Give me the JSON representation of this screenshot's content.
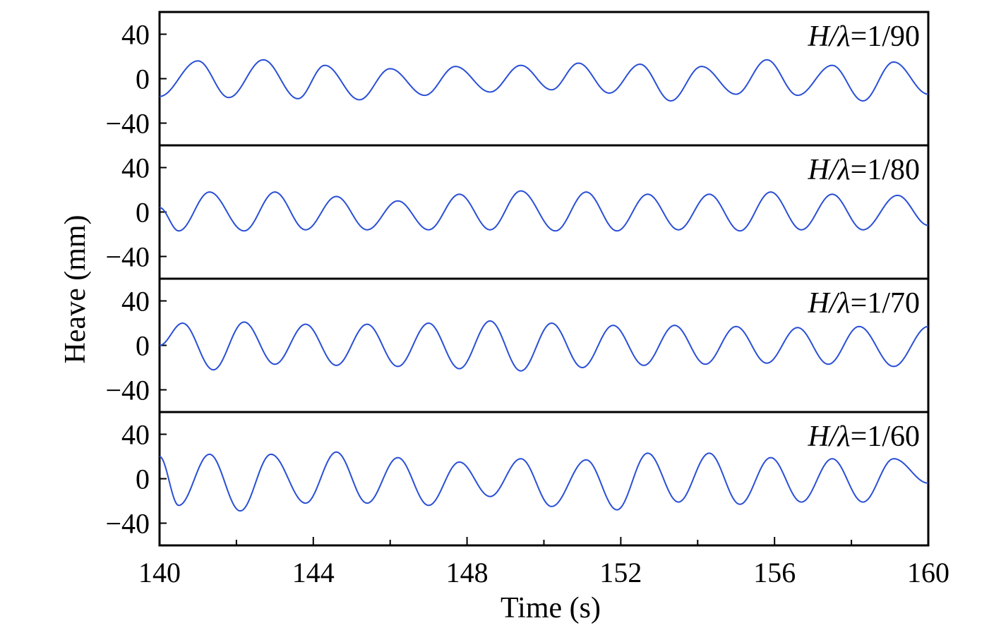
{
  "chart_data": {
    "type": "line",
    "xlabel": "Time (s)",
    "ylabel": "Heave (mm)",
    "xlim": [
      140,
      160
    ],
    "x_ticks": [
      140,
      144,
      148,
      152,
      156,
      160
    ],
    "x_minor_ticks": [
      142,
      146,
      150,
      154,
      158
    ],
    "y_ticks": [
      40,
      0,
      -40
    ],
    "y_tick_labels": [
      "40",
      "0",
      "−40"
    ],
    "ylim": [
      -60,
      60
    ],
    "series_color": "#2a4fd6",
    "panels": [
      {
        "name": "H/λ=1/90",
        "label_italic_part": "H/λ",
        "label_plain_part": "=1/90",
        "peaks": [
          [
            140.0,
            -16
          ],
          [
            141.0,
            16
          ],
          [
            141.8,
            -17
          ],
          [
            142.7,
            17
          ],
          [
            143.6,
            -18
          ],
          [
            144.3,
            12
          ],
          [
            145.2,
            -19
          ],
          [
            146.0,
            9
          ],
          [
            146.9,
            -15
          ],
          [
            147.7,
            11
          ],
          [
            148.6,
            -12
          ],
          [
            149.4,
            12
          ],
          [
            150.2,
            -10
          ],
          [
            150.9,
            14
          ],
          [
            151.7,
            -13
          ],
          [
            152.5,
            13
          ],
          [
            153.3,
            -20
          ],
          [
            154.1,
            11
          ],
          [
            155.0,
            -14
          ],
          [
            155.8,
            17
          ],
          [
            156.6,
            -15
          ],
          [
            157.5,
            12
          ],
          [
            158.3,
            -20
          ],
          [
            159.1,
            15
          ],
          [
            160.0,
            -14
          ]
        ]
      },
      {
        "name": "H/λ=1/80",
        "label_italic_part": "H/λ",
        "label_plain_part": "=1/80",
        "peaks": [
          [
            140.0,
            4
          ],
          [
            140.5,
            -17
          ],
          [
            141.3,
            18
          ],
          [
            142.2,
            -17
          ],
          [
            143.0,
            18
          ],
          [
            143.8,
            -16
          ],
          [
            144.6,
            14
          ],
          [
            145.4,
            -16
          ],
          [
            146.2,
            10
          ],
          [
            147.0,
            -16
          ],
          [
            147.8,
            16
          ],
          [
            148.6,
            -16
          ],
          [
            149.4,
            19
          ],
          [
            150.3,
            -17
          ],
          [
            151.1,
            18
          ],
          [
            151.9,
            -17
          ],
          [
            152.7,
            16
          ],
          [
            153.5,
            -16
          ],
          [
            154.3,
            16
          ],
          [
            155.1,
            -17
          ],
          [
            155.9,
            18
          ],
          [
            156.7,
            -16
          ],
          [
            157.5,
            16
          ],
          [
            158.3,
            -16
          ],
          [
            159.2,
            15
          ],
          [
            160.0,
            -12
          ]
        ]
      },
      {
        "name": "H/λ=1/70",
        "label_italic_part": "H/λ",
        "label_plain_part": "=1/70",
        "peaks": [
          [
            140.0,
            0
          ],
          [
            140.6,
            20
          ],
          [
            141.4,
            -22
          ],
          [
            142.2,
            21
          ],
          [
            143.0,
            -17
          ],
          [
            143.8,
            19
          ],
          [
            144.6,
            -18
          ],
          [
            145.4,
            19
          ],
          [
            146.2,
            -19
          ],
          [
            147.0,
            20
          ],
          [
            147.8,
            -21
          ],
          [
            148.6,
            22
          ],
          [
            149.4,
            -23
          ],
          [
            150.2,
            20
          ],
          [
            151.0,
            -20
          ],
          [
            151.8,
            18
          ],
          [
            152.6,
            -18
          ],
          [
            153.4,
            18
          ],
          [
            154.2,
            -17
          ],
          [
            155.0,
            17
          ],
          [
            155.8,
            -16
          ],
          [
            156.6,
            16
          ],
          [
            157.4,
            -17
          ],
          [
            158.2,
            17
          ],
          [
            159.1,
            -19
          ],
          [
            160.0,
            17
          ]
        ]
      },
      {
        "name": "H/λ=1/60",
        "label_italic_part": "H/λ",
        "label_plain_part": "=1/60",
        "peaks": [
          [
            140.0,
            20
          ],
          [
            140.5,
            -24
          ],
          [
            141.3,
            22
          ],
          [
            142.1,
            -29
          ],
          [
            142.9,
            22
          ],
          [
            143.8,
            -22
          ],
          [
            144.6,
            24
          ],
          [
            145.4,
            -22
          ],
          [
            146.2,
            19
          ],
          [
            147.0,
            -24
          ],
          [
            147.8,
            15
          ],
          [
            148.6,
            -16
          ],
          [
            149.4,
            18
          ],
          [
            150.2,
            -25
          ],
          [
            151.1,
            17
          ],
          [
            151.9,
            -28
          ],
          [
            152.7,
            23
          ],
          [
            153.5,
            -21
          ],
          [
            154.3,
            23
          ],
          [
            155.1,
            -23
          ],
          [
            155.9,
            19
          ],
          [
            156.7,
            -21
          ],
          [
            157.5,
            18
          ],
          [
            158.3,
            -21
          ],
          [
            159.1,
            18
          ],
          [
            160.0,
            -4
          ]
        ]
      }
    ]
  }
}
